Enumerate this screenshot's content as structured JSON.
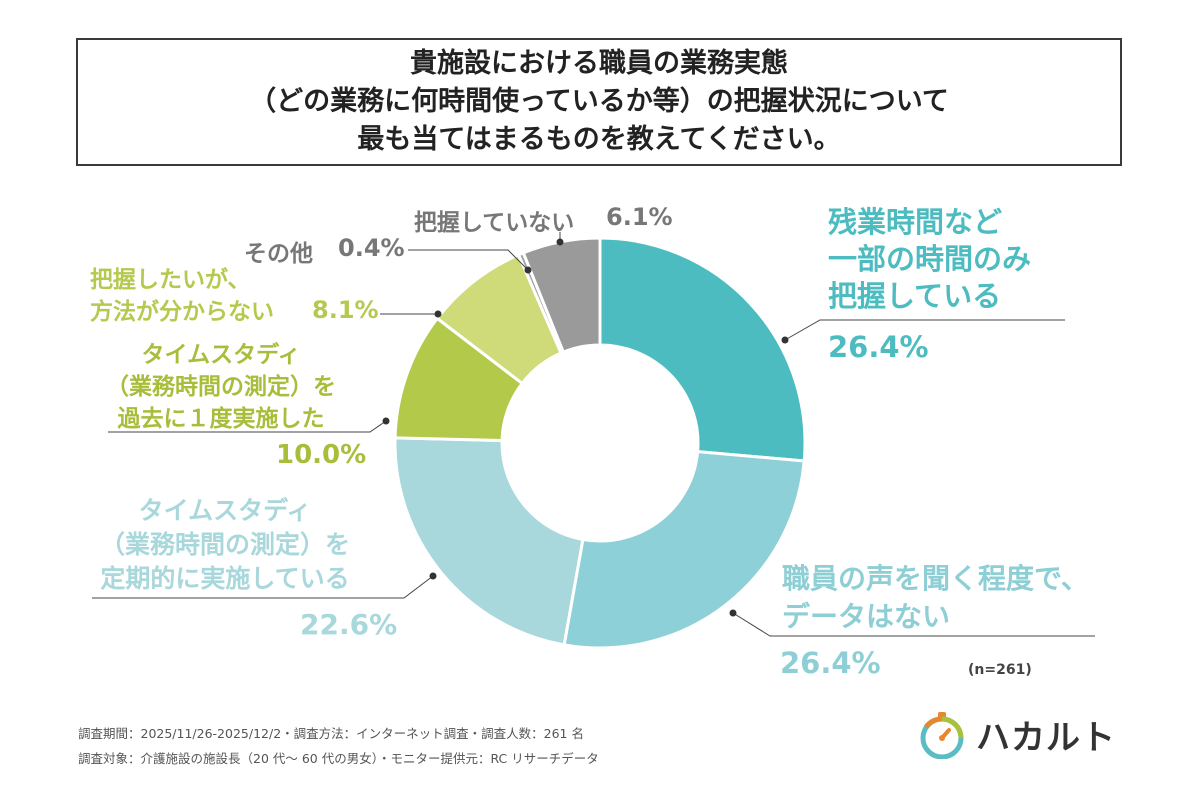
{
  "title": {
    "lines": [
      "貴施設における職員の業務実態",
      "（どの業務に何時間使っているか等）の把握状況について",
      "最も当てはまるものを教えてください。"
    ]
  },
  "chart_data": {
    "type": "pie",
    "donut": true,
    "slices": [
      {
        "label": "残業時間など一部の時間のみ把握している",
        "label_lines": [
          "残業時間など",
          "一部の時間のみ",
          "把握している"
        ],
        "value": 26.4,
        "value_text": "26.4%",
        "color": "#4dbcc0"
      },
      {
        "label": "職員の声を聞く程度で、データはない",
        "label_lines": [
          "職員の声を聞く程度で、",
          "データはない"
        ],
        "value": 26.4,
        "value_text": "26.4%",
        "color": "#8ed0d8"
      },
      {
        "label": "タイムスタディ（業務時間の測定）を定期的に実施している",
        "label_lines": [
          "タイムスタディ",
          "（業務時間の測定）を",
          "定期的に実施している"
        ],
        "value": 22.6,
        "value_text": "22.6%",
        "color": "#a8d7dc"
      },
      {
        "label": "タイムスタディ（業務時間の測定）を過去に１度実施した",
        "label_lines": [
          "タイムスタディ",
          "（業務時間の測定）を",
          "過去に１度実施した"
        ],
        "value": 10.0,
        "value_text": "10.0%",
        "color": "#b3c94a"
      },
      {
        "label": "把握したいが、方法が分からない",
        "label_lines": [
          "把握したいが、",
          "方法が分からない"
        ],
        "value": 8.1,
        "value_text": "8.1%",
        "color": "#cfdb78"
      },
      {
        "label": "その他",
        "label_lines": [
          "その他"
        ],
        "value": 0.4,
        "value_text": "0.4%",
        "color": "#a3a3a3"
      },
      {
        "label": "把握していない",
        "label_lines": [
          "把握していない"
        ],
        "value": 6.1,
        "value_text": "6.1%",
        "color": "#9b9a9a"
      }
    ],
    "label_colors": {
      "teal": "#4dbcc0",
      "lightblue": "#8ecfd6",
      "green": "#a9bd3b",
      "lightgreen": "#b6c94e",
      "gray": "#777777"
    }
  },
  "sample_size": "(n=261)",
  "footer": {
    "line1": "調査期間：2025/11/26-2025/12/2・調査方法：インターネット調査・調査人数：261 名",
    "line2": "調査対象：介護施設の施設長（20 代～ 60 代の男女）・モニター提供元：RC リサーチデータ"
  },
  "brand": {
    "name": "ハカルト",
    "icon": "stopwatch-logo-icon"
  }
}
